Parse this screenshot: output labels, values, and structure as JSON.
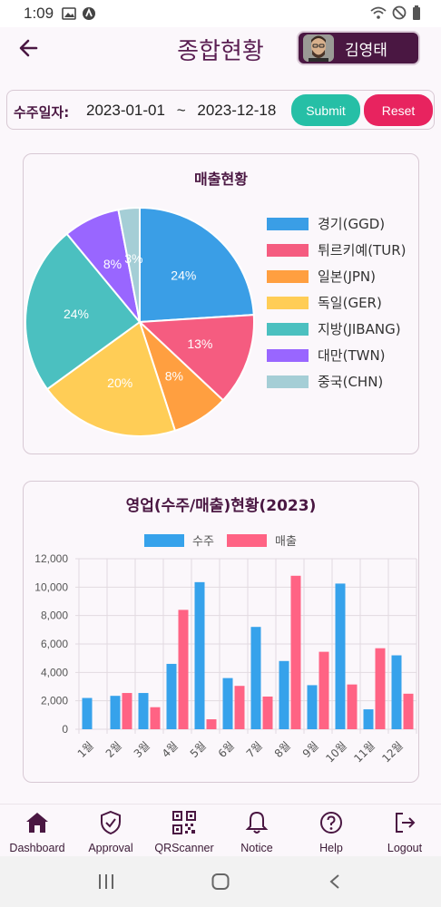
{
  "status": {
    "time": "1:09"
  },
  "header": {
    "title": "종합현황",
    "user_name": "김영태"
  },
  "filter": {
    "label": "수주일자:",
    "start_date": "2023-01-01",
    "separator": "~",
    "end_date": "2023-12-18",
    "submit_label": "Submit",
    "reset_label": "Reset"
  },
  "chart_data": [
    {
      "type": "pie",
      "title": "매출현황",
      "legend": [
        "경기(GGD)",
        "튀르키예(TUR)",
        "일본(JPN)",
        "독일(GER)",
        "지방(JIBANG)",
        "대만(TWN)",
        "중국(CHN)"
      ],
      "values": [
        24,
        13,
        8,
        20,
        24,
        8,
        3
      ],
      "labels": [
        "24%",
        "13%",
        "8%",
        "20%",
        "24%",
        "8%",
        "3%"
      ],
      "colors": [
        "#3a9ee6",
        "#f55c80",
        "#ff9f40",
        "#ffcd56",
        "#4bc0c0",
        "#9966ff",
        "#a5ced6"
      ],
      "legend_position": "right"
    },
    {
      "type": "bar",
      "title": "영업(수주/매출)현황(2023)",
      "categories": [
        "1월",
        "2월",
        "3월",
        "4월",
        "5월",
        "6월",
        "7월",
        "8월",
        "9월",
        "10월",
        "11월",
        "12월"
      ],
      "series": [
        {
          "name": "수주",
          "color": "#36a2eb",
          "values": [
            2200,
            2350,
            2550,
            4600,
            10350,
            3600,
            7200,
            4800,
            3100,
            10250,
            1400,
            5200
          ]
        },
        {
          "name": "매출",
          "color": "#ff6384",
          "values": [
            0,
            2550,
            1550,
            8400,
            700,
            3050,
            2300,
            10800,
            5450,
            3150,
            5700,
            2500
          ]
        }
      ],
      "ylim": [
        0,
        12000
      ],
      "yticks": [
        "0",
        "2,000",
        "4,000",
        "6,000",
        "8,000",
        "10,000",
        "12,000"
      ],
      "grid": true,
      "legend_position": "top"
    }
  ],
  "nav": {
    "items": [
      {
        "label": "Dashboard",
        "icon": "home-icon"
      },
      {
        "label": "Approval",
        "icon": "shield-check-icon"
      },
      {
        "label": "QRScanner",
        "icon": "qr-code-icon"
      },
      {
        "label": "Notice",
        "icon": "bell-icon"
      },
      {
        "label": "Help",
        "icon": "help-icon"
      },
      {
        "label": "Logout",
        "icon": "logout-icon"
      }
    ]
  }
}
